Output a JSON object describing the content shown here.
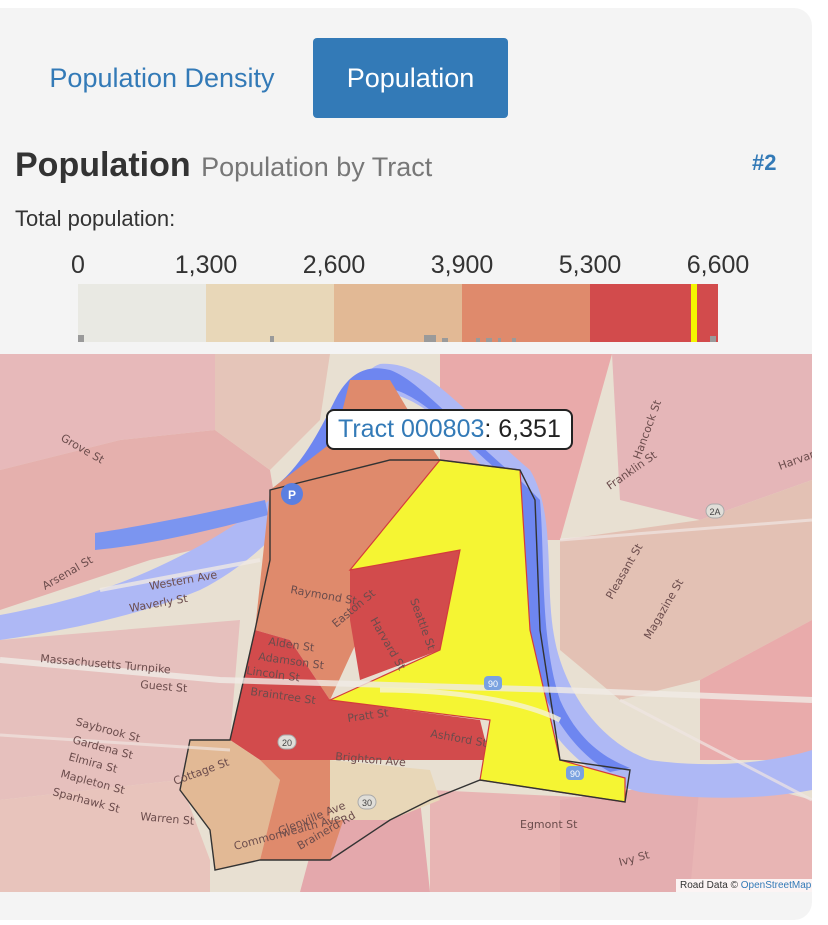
{
  "tabs": [
    {
      "label": "Population Density",
      "active": false
    },
    {
      "label": "Population",
      "active": true
    }
  ],
  "heading": {
    "title": "Population",
    "subtitle": "Population by Tract"
  },
  "badge": "#2",
  "legend": {
    "label": "Total population:",
    "ticks": [
      "0",
      "1,300",
      "2,600",
      "3,900",
      "5,300",
      "6,600"
    ],
    "colors": [
      "#e9e9e3",
      "#e8d7b8",
      "#e2b995",
      "#df8a6c",
      "#d24b4c"
    ],
    "highlight_color": "#f5f500",
    "highlight_value": 6351
  },
  "tooltip": {
    "name": "Tract 000803",
    "value": ": 6,351"
  },
  "map": {
    "streets": [
      "Raymond St",
      "Easton St",
      "Harvard St",
      "Seattle St",
      "Alden St",
      "Adamson St",
      "Lincoln St",
      "Braintree St",
      "Pratt St",
      "Ashford St",
      "Brighton Ave",
      "Glenville Ave",
      "Commonwealth Ave",
      "Brainerd Rd",
      "Cottage St",
      "Arsenal St",
      "Western Ave",
      "Waverly St",
      "Massachusetts Turnpike",
      "Guest St",
      "Franklin St",
      "Pleasant St",
      "Magazine St",
      "Saybrook St",
      "Gardena St",
      "Elmira St",
      "Mapleton St",
      "Sparhawk St",
      "Warren St",
      "Egmont St",
      "Ivy St",
      "Hancock St",
      "Harvard St",
      "Grove St"
    ],
    "highway_shields": [
      "90",
      "90",
      "20",
      "30",
      "2A"
    ],
    "attribution_prefix": "Road Data © ",
    "attribution_link": "OpenStreetMap"
  }
}
